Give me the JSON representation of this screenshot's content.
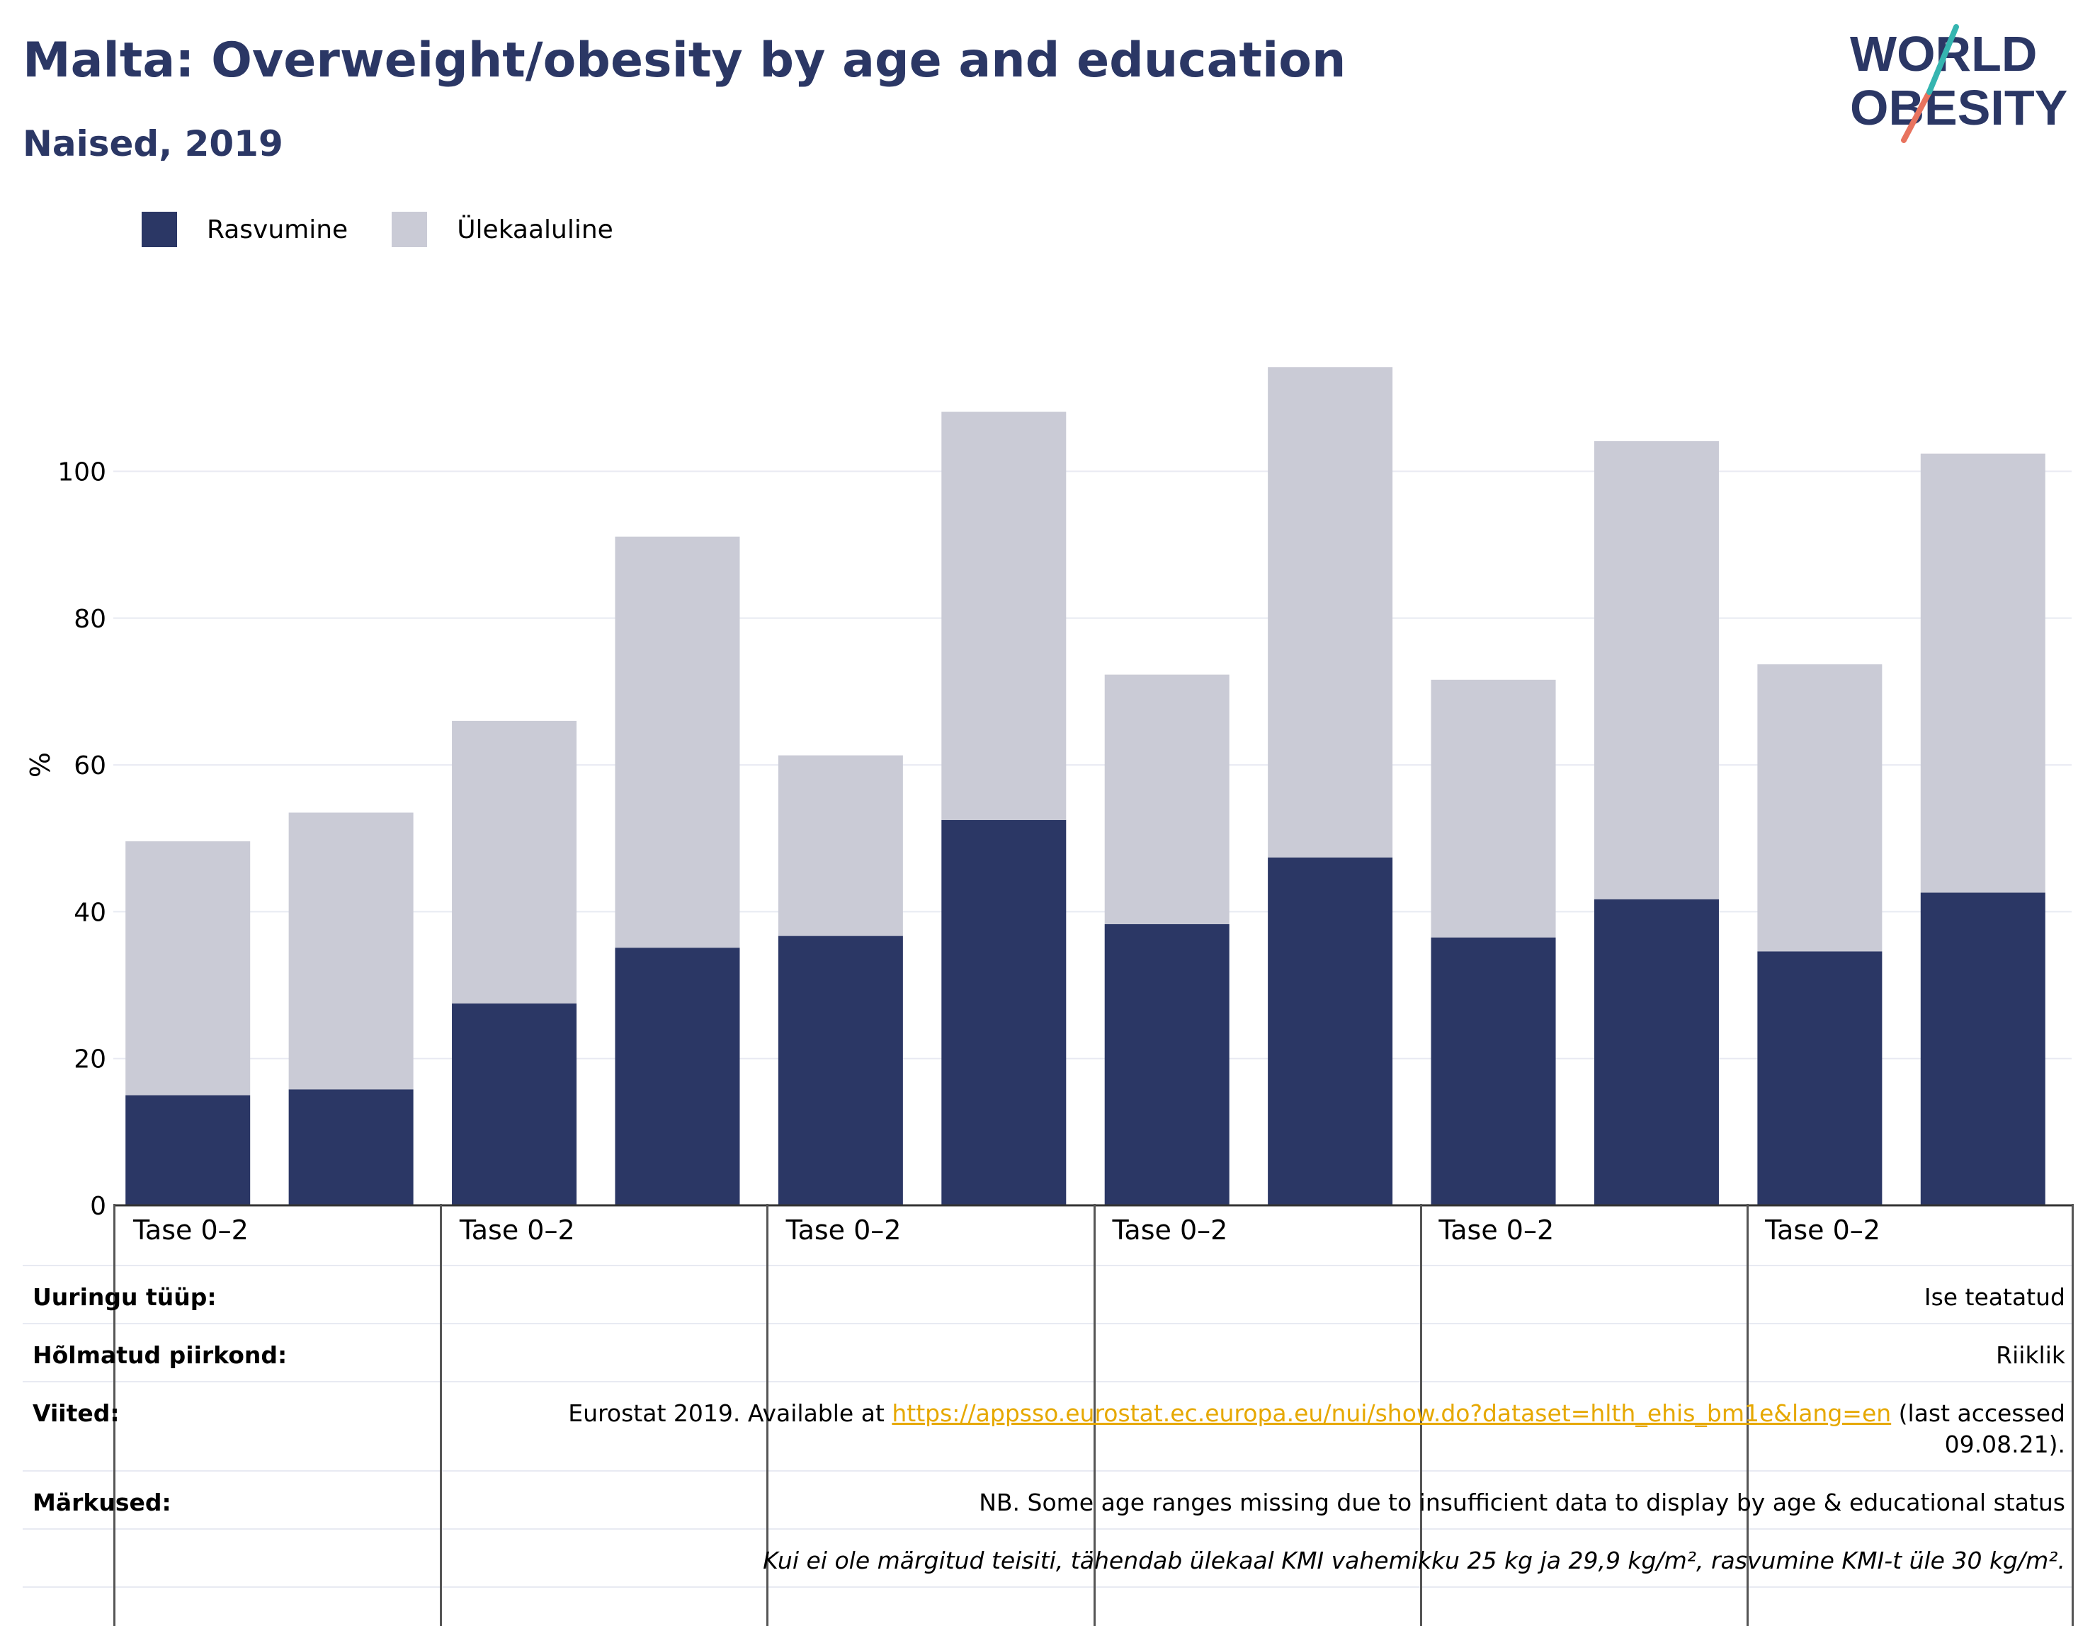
{
  "title": "Malta: Overweight/obesity by age and education",
  "subtitle": "Naised, 2019",
  "logo": {
    "line1": "WORLD",
    "line2": "OBESITY"
  },
  "legend": [
    {
      "label": "Rasvumine",
      "color": "#2b3765"
    },
    {
      "label": "Ülekaaluline",
      "color": "#cacbd6"
    }
  ],
  "chart_data": {
    "type": "bar",
    "stacked": true,
    "ylabel": "%",
    "ylim": [
      0,
      115
    ],
    "yticks": [
      0,
      20,
      40,
      60,
      80,
      100
    ],
    "grid": true,
    "legend_position": "top-left",
    "group_labels": [
      "Tase 0–2",
      "Tase 0–2",
      "Tase 0–2",
      "Tase 0–2",
      "Tase 0–2",
      "Tase 0–2"
    ],
    "series": [
      {
        "name": "Rasvumine",
        "color": "#2b3765",
        "values": [
          15.0,
          15.8,
          27.5,
          35.1,
          36.7,
          52.5,
          38.3,
          47.4,
          36.5,
          41.7,
          34.6,
          42.6
        ]
      },
      {
        "name": "Ülekaaluline",
        "color": "#cacbd6",
        "values": [
          34.6,
          37.7,
          38.5,
          56.0,
          24.6,
          55.6,
          34.0,
          66.8,
          35.1,
          62.4,
          39.1,
          59.8
        ]
      }
    ]
  },
  "footer": {
    "survey_type": {
      "label": "Uuringu tüüp:",
      "value": "Ise teatatud"
    },
    "region": {
      "label": "Hõlmatud piirkond:",
      "value": "Riiklik"
    },
    "references": {
      "label": "Viited:",
      "prefix": "Eurostat 2019. Available at ",
      "link": "https://appsso.eurostat.ec.europa.eu/nui/show.do?dataset=hlth_ehis_bm1e&lang=en",
      "suffix": " (last accessed",
      "line2": "09.08.21)."
    },
    "notes": {
      "label": "Märkused:",
      "value": "NB. Some age ranges missing due to insufficient data to display by age & educational status",
      "definition": "Kui ei ole märgitud teisiti, tähendab ülekaal KMI vahemikku 25 kg ja 29,9 kg/m², rasvumine KMI-t üle 30 kg/m²."
    }
  }
}
